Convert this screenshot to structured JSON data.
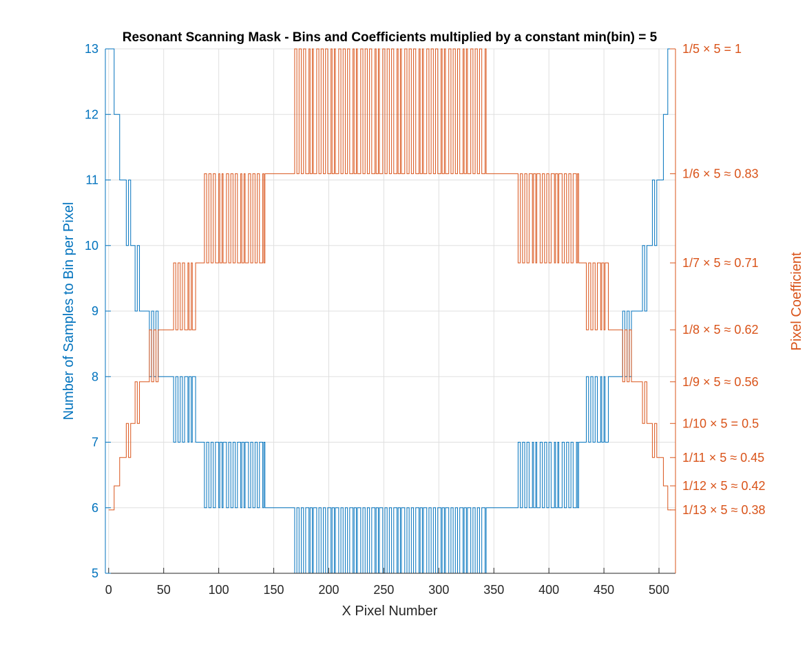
{
  "chart_data": {
    "type": "line",
    "title": "Resonant Scanning Mask - Bins and Coefficients multiplied by a constant min(bin) = 5",
    "xlabel": "X Pixel Number",
    "ylabel": "Number of Samples to Bin per Pixel",
    "y2label": "Pixel Coefficient",
    "xlim": [
      -3,
      515
    ],
    "ylim": [
      5,
      13
    ],
    "y2lim": [
      0.3,
      1.0
    ],
    "grid": true,
    "colors": {
      "left": "#0072BD",
      "right": "#D95319"
    },
    "xticks": [
      0,
      50,
      100,
      150,
      200,
      250,
      300,
      350,
      400,
      450,
      500
    ],
    "xtick_labels": [
      "0",
      "50",
      "100",
      "150",
      "200",
      "250",
      "300",
      "350",
      "400",
      "450",
      "500"
    ],
    "yticks": [
      5,
      6,
      7,
      8,
      9,
      10,
      11,
      12,
      13
    ],
    "ytick_labels": [
      "5",
      "6",
      "7",
      "8",
      "9",
      "10",
      "11",
      "12",
      "13"
    ],
    "y2ticks": [
      {
        "value": 1.0,
        "label": "1/5 × 5 = 1"
      },
      {
        "value": 0.8333,
        "label": "1/6 × 5 ≈ 0.83"
      },
      {
        "value": 0.7143,
        "label": "1/7 × 5 ≈ 0.71"
      },
      {
        "value": 0.625,
        "label": "1/8 × 5 ≈ 0.62"
      },
      {
        "value": 0.5556,
        "label": "1/9 × 5 ≈ 0.56"
      },
      {
        "value": 0.5,
        "label": "1/10 × 5 = 0.5"
      },
      {
        "value": 0.4545,
        "label": "1/11 × 5 ≈ 0.45"
      },
      {
        "value": 0.4167,
        "label": "1/12 × 5 ≈ 0.42"
      },
      {
        "value": 0.3846,
        "label": "1/13 × 5 ≈ 0.38"
      }
    ],
    "series": [
      {
        "name": "Number of Samples to Bin per Pixel",
        "axis": "left",
        "color": "#0072BD",
        "description": "Bins per pixel: 13 at the edges, stepping down toward the center with rapid alternation in transition zones",
        "segments": [
          {
            "from": 0,
            "to": 3,
            "levels": [
              13
            ]
          },
          {
            "from": 3,
            "to": 6,
            "levels": [
              13,
              12
            ]
          },
          {
            "from": 6,
            "to": 8,
            "levels": [
              12
            ]
          },
          {
            "from": 8,
            "to": 10,
            "levels": [
              12,
              11
            ]
          },
          {
            "from": 10,
            "to": 14,
            "levels": [
              11
            ]
          },
          {
            "from": 14,
            "to": 20,
            "levels": [
              11,
              10
            ]
          },
          {
            "from": 20,
            "to": 22,
            "levels": [
              10
            ]
          },
          {
            "from": 22,
            "to": 29,
            "levels": [
              10,
              9
            ]
          },
          {
            "from": 29,
            "to": 35,
            "levels": [
              9
            ]
          },
          {
            "from": 35,
            "to": 47,
            "levels": [
              9,
              8
            ]
          },
          {
            "from": 47,
            "to": 57,
            "levels": [
              8
            ]
          },
          {
            "from": 57,
            "to": 80,
            "levels": [
              8,
              7
            ]
          },
          {
            "from": 80,
            "to": 85,
            "levels": [
              7
            ]
          },
          {
            "from": 85,
            "to": 142,
            "levels": [
              7,
              6
            ]
          },
          {
            "from": 142,
            "to": 167,
            "levels": [
              6
            ]
          },
          {
            "from": 167,
            "to": 345,
            "levels": [
              6,
              5
            ]
          },
          {
            "from": 345,
            "to": 370,
            "levels": [
              6
            ]
          },
          {
            "from": 370,
            "to": 427,
            "levels": [
              6,
              7
            ]
          },
          {
            "from": 427,
            "to": 432,
            "levels": [
              7
            ]
          },
          {
            "from": 432,
            "to": 455,
            "levels": [
              7,
              8
            ]
          },
          {
            "from": 455,
            "to": 465,
            "levels": [
              8
            ]
          },
          {
            "from": 465,
            "to": 477,
            "levels": [
              8,
              9
            ]
          },
          {
            "from": 477,
            "to": 483,
            "levels": [
              9
            ]
          },
          {
            "from": 483,
            "to": 490,
            "levels": [
              9,
              10
            ]
          },
          {
            "from": 490,
            "to": 492,
            "levels": [
              10
            ]
          },
          {
            "from": 492,
            "to": 498,
            "levels": [
              10,
              11
            ]
          },
          {
            "from": 498,
            "to": 502,
            "levels": [
              11
            ]
          },
          {
            "from": 502,
            "to": 504,
            "levels": [
              11,
              12
            ]
          },
          {
            "from": 504,
            "to": 506,
            "levels": [
              12
            ]
          },
          {
            "from": 506,
            "to": 509,
            "levels": [
              12,
              13
            ]
          },
          {
            "from": 509,
            "to": 512,
            "levels": [
              13
            ]
          }
        ]
      },
      {
        "name": "Pixel Coefficient",
        "axis": "right",
        "color": "#D95319",
        "description": "Coefficient = 5 / bins; mirrors the bins series on the right axis",
        "scale": 5
      }
    ]
  }
}
